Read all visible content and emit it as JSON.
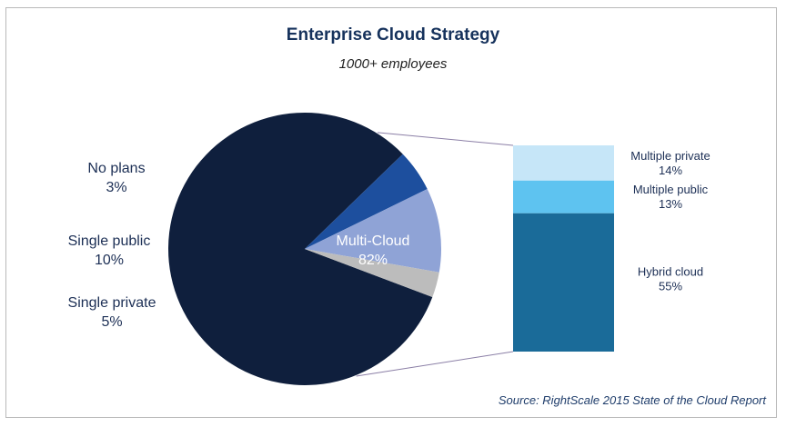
{
  "chart_data": {
    "type": "pie",
    "title": "Enterprise Cloud Strategy",
    "subtitle": "1000+ employees",
    "source": "Source: RightScale 2015 State of the Cloud Report",
    "slices": [
      {
        "label": "Multi-Cloud",
        "value": 82,
        "value_text": "82%",
        "color": "#0f1f3d"
      },
      {
        "label": "Single private",
        "value": 5,
        "value_text": "5%",
        "color": "#1d4f9e"
      },
      {
        "label": "Single public",
        "value": 10,
        "value_text": "10%",
        "color": "#8fa3d6"
      },
      {
        "label": "No plans",
        "value": 3,
        "value_text": "3%",
        "color": "#bcbcbc"
      }
    ],
    "breakdown": {
      "parent": "Multi-Cloud",
      "segments": [
        {
          "label": "Multiple private",
          "value": 14,
          "value_text": "14%",
          "color": "#c6e6f8"
        },
        {
          "label": "Multiple public",
          "value": 13,
          "value_text": "13%",
          "color": "#5ec3f0"
        },
        {
          "label": "Hybrid cloud",
          "value": 55,
          "value_text": "55%",
          "color": "#1a6b99"
        }
      ]
    }
  }
}
